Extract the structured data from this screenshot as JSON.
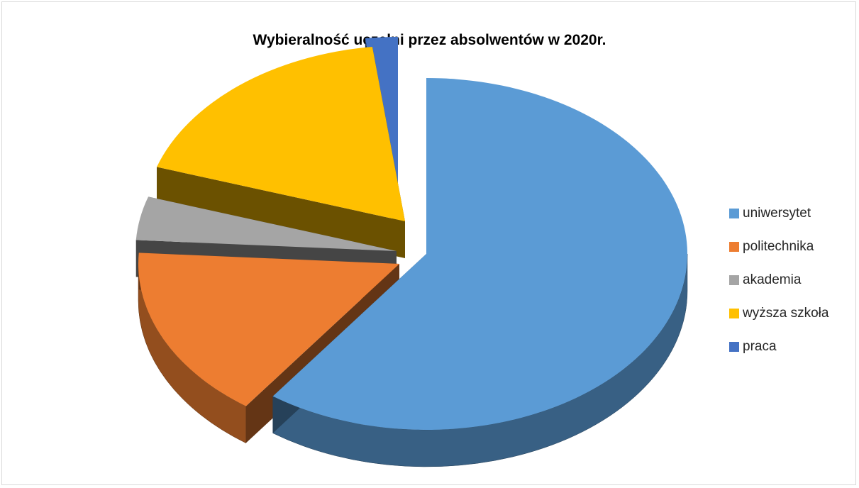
{
  "chart_data": {
    "type": "pie",
    "style": "3d-exploded",
    "title": "Wybieralność uczelni przez absolwentów w 2020r.",
    "legend_position": "right",
    "series": [
      {
        "name": "uniwersytet",
        "value": 60,
        "color": "#5b9bd5"
      },
      {
        "name": "politechnika",
        "value": 16,
        "color": "#ed7d31"
      },
      {
        "name": "akademia",
        "value": 4,
        "color": "#a5a5a5"
      },
      {
        "name": "wyższa szkoła",
        "value": 18,
        "color": "#ffc000"
      },
      {
        "name": "praca",
        "value": 2,
        "color": "#4472c4"
      }
    ]
  }
}
